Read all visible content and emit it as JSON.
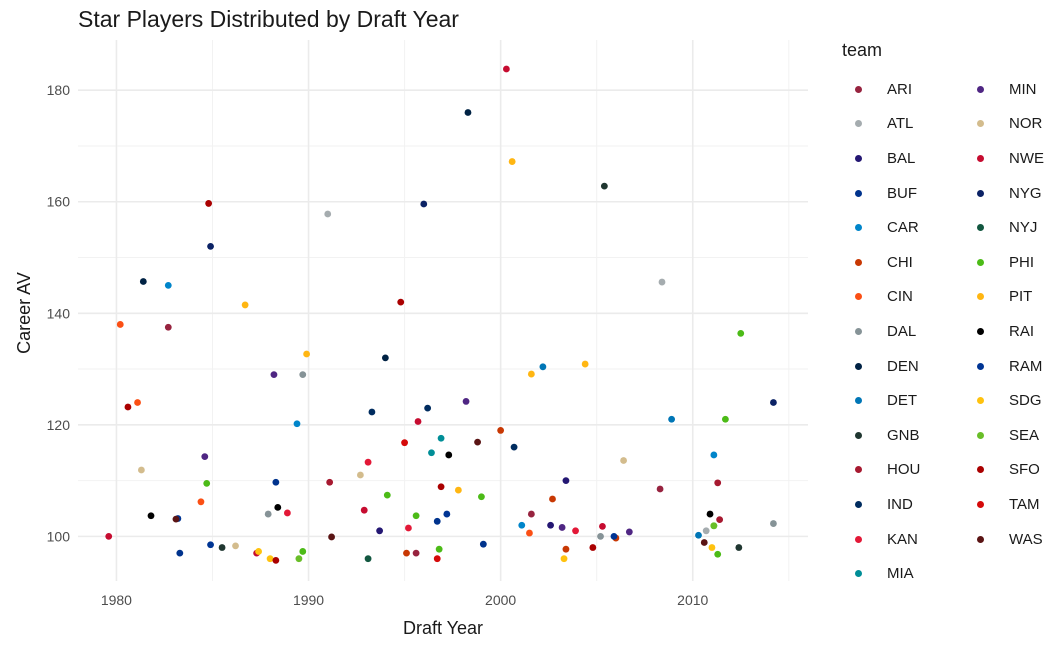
{
  "chart_data": {
    "type": "scatter",
    "title": "Star Players Distributed by Draft Year",
    "xlabel": "Draft Year",
    "ylabel": "Career AV",
    "xlim": [
      1978,
      2016
    ],
    "ylim": [
      92,
      189
    ],
    "x_ticks": [
      1980,
      1990,
      2000,
      2010
    ],
    "y_ticks": [
      100,
      120,
      140,
      160,
      180
    ],
    "grid": true,
    "legend_title": "team",
    "legend_placement": "right",
    "series": [
      {
        "name": "ARI",
        "color": "#97233F",
        "points": [
          [
            1982.7,
            137.5
          ],
          [
            1995.6,
            97
          ],
          [
            2001.6,
            104
          ],
          [
            2008.3,
            108.5
          ]
        ]
      },
      {
        "name": "ATL",
        "color": "#A5ACAF",
        "points": [
          [
            1991,
            157.8
          ],
          [
            2008.4,
            145.6
          ],
          [
            2010.7,
            101
          ]
        ]
      },
      {
        "name": "BAL",
        "color": "#241773",
        "points": [
          [
            1993.7,
            101
          ],
          [
            2002.6,
            102
          ],
          [
            2003.4,
            110
          ]
        ]
      },
      {
        "name": "BUF",
        "color": "#00338D",
        "points": [
          [
            1983.3,
            97
          ],
          [
            1988.3,
            109.7
          ],
          [
            1996.7,
            102.7
          ],
          [
            1999.1,
            98.6
          ]
        ]
      },
      {
        "name": "CAR",
        "color": "#0085CA",
        "points": [
          [
            1982.7,
            145
          ],
          [
            1989.4,
            120.2
          ],
          [
            2001.1,
            102
          ],
          [
            2011.1,
            114.6
          ]
        ]
      },
      {
        "name": "CHI",
        "color": "#C83803",
        "points": [
          [
            1995.1,
            97
          ],
          [
            2000,
            119
          ],
          [
            2002.7,
            106.7
          ],
          [
            2003.4,
            97.7
          ],
          [
            2006,
            99.7
          ]
        ]
      },
      {
        "name": "CIN",
        "color": "#FB4F14",
        "points": [
          [
            1980.2,
            138
          ],
          [
            1981.1,
            124
          ],
          [
            1984.4,
            106.2
          ],
          [
            2001.5,
            100.6
          ]
        ]
      },
      {
        "name": "DAL",
        "color": "#869397",
        "points": [
          [
            1987.9,
            104
          ],
          [
            1989.7,
            129
          ],
          [
            2005.2,
            100
          ],
          [
            2014.2,
            102.3
          ]
        ]
      },
      {
        "name": "DEN",
        "color": "#002244",
        "points": [
          [
            1981.4,
            145.7
          ],
          [
            1994,
            132
          ],
          [
            1998.3,
            176
          ]
        ]
      },
      {
        "name": "DET",
        "color": "#0076B6",
        "points": [
          [
            2002.2,
            130.4
          ],
          [
            2008.9,
            121
          ],
          [
            2010.3,
            100.2
          ]
        ]
      },
      {
        "name": "GNB",
        "color": "#203731",
        "points": [
          [
            1985.5,
            98
          ],
          [
            2005.4,
            162.8
          ],
          [
            2012.4,
            98
          ]
        ]
      },
      {
        "name": "HOU",
        "color": "#A71930",
        "points": [
          [
            1991.1,
            109.7
          ],
          [
            2011.3,
            109.6
          ],
          [
            2011.4,
            103
          ]
        ]
      },
      {
        "name": "IND",
        "color": "#002C5F",
        "points": [
          [
            1993.3,
            122.3
          ],
          [
            1996.2,
            123
          ],
          [
            2000.7,
            116
          ]
        ]
      },
      {
        "name": "KAN",
        "color": "#E31837",
        "points": [
          [
            1988.9,
            104.2
          ],
          [
            1993.1,
            113.3
          ],
          [
            1995.2,
            101.5
          ],
          [
            2003.9,
            101
          ]
        ]
      },
      {
        "name": "MIA",
        "color": "#008E97",
        "points": [
          [
            1996.4,
            115
          ],
          [
            1996.9,
            117.6
          ]
        ]
      },
      {
        "name": "MIN",
        "color": "#4F2683",
        "points": [
          [
            1984.6,
            114.3
          ],
          [
            1988.2,
            129
          ],
          [
            1998.2,
            124.2
          ],
          [
            2003.2,
            101.6
          ],
          [
            2006.7,
            100.8
          ]
        ]
      },
      {
        "name": "NOR",
        "color": "#D3BC8D",
        "points": [
          [
            1981.3,
            111.9
          ],
          [
            1986.2,
            98.3
          ],
          [
            1992.7,
            111
          ],
          [
            2006.4,
            113.6
          ]
        ]
      },
      {
        "name": "NWE",
        "color": "#C60C30",
        "points": [
          [
            1979.6,
            100
          ],
          [
            1987.3,
            97
          ],
          [
            1992.9,
            104.7
          ],
          [
            1995.7,
            120.6
          ],
          [
            2000.3,
            183.8
          ],
          [
            2005.3,
            101.8
          ]
        ]
      },
      {
        "name": "NYG",
        "color": "#0B2265",
        "points": [
          [
            1984.9,
            152
          ],
          [
            1996,
            159.6
          ],
          [
            2014.2,
            124
          ]
        ]
      },
      {
        "name": "NYJ",
        "color": "#125740",
        "points": [
          [
            1993.1,
            96
          ]
        ]
      },
      {
        "name": "PHI",
        "color": "#4CBB17",
        "points": [
          [
            1984.7,
            109.5
          ],
          [
            1989.7,
            97.3
          ],
          [
            1994.1,
            107.4
          ],
          [
            1995.6,
            103.7
          ],
          [
            1996.8,
            97.7
          ],
          [
            1999,
            107.1
          ],
          [
            2011.1,
            101.9
          ],
          [
            2011.3,
            96.8
          ],
          [
            2011.7,
            121
          ],
          [
            2012.5,
            136.4
          ]
        ]
      },
      {
        "name": "PIT",
        "color": "#FFB612",
        "points": [
          [
            1986.7,
            141.5
          ],
          [
            1989.9,
            132.7
          ],
          [
            1997.8,
            108.3
          ],
          [
            2000.6,
            167.2
          ],
          [
            2001.6,
            129.1
          ],
          [
            2004.4,
            130.9
          ]
        ]
      },
      {
        "name": "RAI",
        "color": "#000000",
        "points": [
          [
            1981.8,
            103.7
          ],
          [
            1988.4,
            105.2
          ],
          [
            1997.3,
            114.6
          ],
          [
            2010.9,
            104
          ]
        ]
      },
      {
        "name": "RAM",
        "color": "#003594",
        "points": [
          [
            1983.2,
            103.2
          ],
          [
            1984.9,
            98.5
          ],
          [
            1997.2,
            104
          ],
          [
            2005.9,
            100
          ]
        ]
      },
      {
        "name": "SDG",
        "color": "#FFC20E",
        "points": [
          [
            1987.4,
            97.3
          ],
          [
            1988,
            96
          ],
          [
            2003.3,
            96
          ],
          [
            2011,
            98
          ]
        ]
      },
      {
        "name": "SEA",
        "color": "#69BE28",
        "points": [
          [
            1989.5,
            96
          ],
          [
            2011.1,
            101.9
          ]
        ]
      },
      {
        "name": "SFO",
        "color": "#AA0000",
        "points": [
          [
            1980.6,
            123.2
          ],
          [
            1984.8,
            159.7
          ],
          [
            1988.3,
            95.7
          ],
          [
            1994.8,
            142
          ],
          [
            1996.9,
            108.9
          ],
          [
            2004.8,
            98
          ]
        ]
      },
      {
        "name": "TAM",
        "color": "#D50A0A",
        "points": [
          [
            1995,
            116.8
          ],
          [
            1996.7,
            96
          ]
        ]
      },
      {
        "name": "WAS",
        "color": "#5A1414",
        "points": [
          [
            1983.1,
            103.1
          ],
          [
            1991.2,
            99.9
          ],
          [
            1998.8,
            116.9
          ],
          [
            2010.6,
            98.9
          ]
        ]
      }
    ]
  }
}
